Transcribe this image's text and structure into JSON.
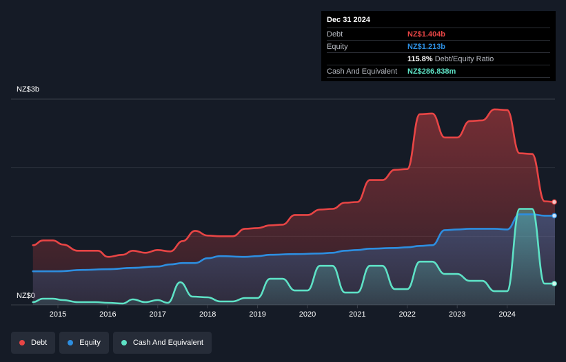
{
  "chart_data": {
    "type": "area",
    "ylim": [
      0,
      3
    ],
    "y_unit": "NZ$b",
    "y_tick_labels": [
      "NZ$3b",
      "NZ$0"
    ],
    "x_ticks": [
      "2015",
      "2016",
      "2017",
      "2018",
      "2019",
      "2020",
      "2021",
      "2022",
      "2023",
      "2024"
    ],
    "grid": true,
    "legend_position": "bottom-left",
    "series": [
      {
        "name": "Debt",
        "color": "#e84545",
        "points": [
          [
            2014.5,
            0.87
          ],
          [
            2014.7,
            0.94
          ],
          [
            2014.9,
            0.94
          ],
          [
            2015.1,
            0.88
          ],
          [
            2015.4,
            0.79
          ],
          [
            2015.8,
            0.79
          ],
          [
            2016.0,
            0.7
          ],
          [
            2016.3,
            0.73
          ],
          [
            2016.5,
            0.79
          ],
          [
            2016.75,
            0.76
          ],
          [
            2017.0,
            0.8
          ],
          [
            2017.25,
            0.78
          ],
          [
            2017.5,
            0.93
          ],
          [
            2017.75,
            1.08
          ],
          [
            2018.0,
            1.01
          ],
          [
            2018.25,
            1.0
          ],
          [
            2018.5,
            1.0
          ],
          [
            2018.75,
            1.11
          ],
          [
            2019.0,
            1.12
          ],
          [
            2019.25,
            1.16
          ],
          [
            2019.5,
            1.17
          ],
          [
            2019.75,
            1.31
          ],
          [
            2020.0,
            1.31
          ],
          [
            2020.25,
            1.39
          ],
          [
            2020.5,
            1.4
          ],
          [
            2020.75,
            1.49
          ],
          [
            2021.0,
            1.5
          ],
          [
            2021.25,
            1.82
          ],
          [
            2021.5,
            1.82
          ],
          [
            2021.75,
            1.97
          ],
          [
            2022.0,
            1.98
          ],
          [
            2022.25,
            2.78
          ],
          [
            2022.5,
            2.79
          ],
          [
            2022.75,
            2.44
          ],
          [
            2023.0,
            2.44
          ],
          [
            2023.25,
            2.68
          ],
          [
            2023.5,
            2.69
          ],
          [
            2023.75,
            2.85
          ],
          [
            2024.0,
            2.84
          ],
          [
            2024.25,
            2.21
          ],
          [
            2024.5,
            2.2
          ],
          [
            2024.75,
            1.51
          ],
          [
            2025.0,
            1.5
          ]
        ]
      },
      {
        "name": "Equity",
        "color": "#2d8ee0",
        "points": [
          [
            2014.5,
            0.49
          ],
          [
            2015.0,
            0.49
          ],
          [
            2015.5,
            0.51
          ],
          [
            2016.0,
            0.52
          ],
          [
            2016.5,
            0.54
          ],
          [
            2017.0,
            0.56
          ],
          [
            2017.25,
            0.59
          ],
          [
            2017.5,
            0.61
          ],
          [
            2017.75,
            0.61
          ],
          [
            2018.0,
            0.68
          ],
          [
            2018.25,
            0.71
          ],
          [
            2018.75,
            0.7
          ],
          [
            2019.0,
            0.71
          ],
          [
            2019.25,
            0.73
          ],
          [
            2019.75,
            0.74
          ],
          [
            2020.25,
            0.75
          ],
          [
            2020.5,
            0.76
          ],
          [
            2020.75,
            0.79
          ],
          [
            2021.0,
            0.8
          ],
          [
            2021.25,
            0.82
          ],
          [
            2021.75,
            0.83
          ],
          [
            2022.0,
            0.84
          ],
          [
            2022.25,
            0.86
          ],
          [
            2022.5,
            0.87
          ],
          [
            2022.75,
            1.09
          ],
          [
            2023.0,
            1.1
          ],
          [
            2023.25,
            1.11
          ],
          [
            2023.75,
            1.11
          ],
          [
            2024.0,
            1.1
          ],
          [
            2024.25,
            1.32
          ],
          [
            2024.5,
            1.32
          ],
          [
            2024.75,
            1.3
          ],
          [
            2025.0,
            1.3
          ]
        ]
      },
      {
        "name": "Cash And Equivalent",
        "color": "#5ee2c6",
        "points": [
          [
            2014.5,
            0.04
          ],
          [
            2014.7,
            0.09
          ],
          [
            2014.9,
            0.09
          ],
          [
            2015.1,
            0.07
          ],
          [
            2015.4,
            0.04
          ],
          [
            2015.75,
            0.04
          ],
          [
            2016.0,
            0.03
          ],
          [
            2016.3,
            0.02
          ],
          [
            2016.5,
            0.08
          ],
          [
            2016.75,
            0.04
          ],
          [
            2017.0,
            0.07
          ],
          [
            2017.2,
            0.03
          ],
          [
            2017.45,
            0.33
          ],
          [
            2017.7,
            0.12
          ],
          [
            2018.0,
            0.11
          ],
          [
            2018.25,
            0.05
          ],
          [
            2018.5,
            0.05
          ],
          [
            2018.75,
            0.1
          ],
          [
            2019.0,
            0.1
          ],
          [
            2019.25,
            0.38
          ],
          [
            2019.5,
            0.38
          ],
          [
            2019.75,
            0.21
          ],
          [
            2020.0,
            0.21
          ],
          [
            2020.25,
            0.57
          ],
          [
            2020.5,
            0.57
          ],
          [
            2020.75,
            0.18
          ],
          [
            2021.0,
            0.18
          ],
          [
            2021.25,
            0.57
          ],
          [
            2021.5,
            0.57
          ],
          [
            2021.75,
            0.23
          ],
          [
            2022.0,
            0.23
          ],
          [
            2022.25,
            0.63
          ],
          [
            2022.5,
            0.63
          ],
          [
            2022.75,
            0.45
          ],
          [
            2023.0,
            0.45
          ],
          [
            2023.25,
            0.35
          ],
          [
            2023.5,
            0.35
          ],
          [
            2023.75,
            0.2
          ],
          [
            2024.0,
            0.2
          ],
          [
            2024.25,
            1.4
          ],
          [
            2024.5,
            1.4
          ],
          [
            2024.75,
            0.31
          ],
          [
            2025.0,
            0.31
          ]
        ]
      }
    ]
  },
  "tooltip": {
    "date": "Dec 31 2024",
    "debt_label": "Debt",
    "debt_value": "NZ$1.404b",
    "equity_label": "Equity",
    "equity_value": "NZ$1.213b",
    "ratio_value": "115.8%",
    "ratio_label": "Debt/Equity Ratio",
    "cash_label": "Cash And Equivalent",
    "cash_value": "NZ$286.838m"
  },
  "legend": {
    "debt": "Debt",
    "equity": "Equity",
    "cash": "Cash And Equivalent"
  }
}
